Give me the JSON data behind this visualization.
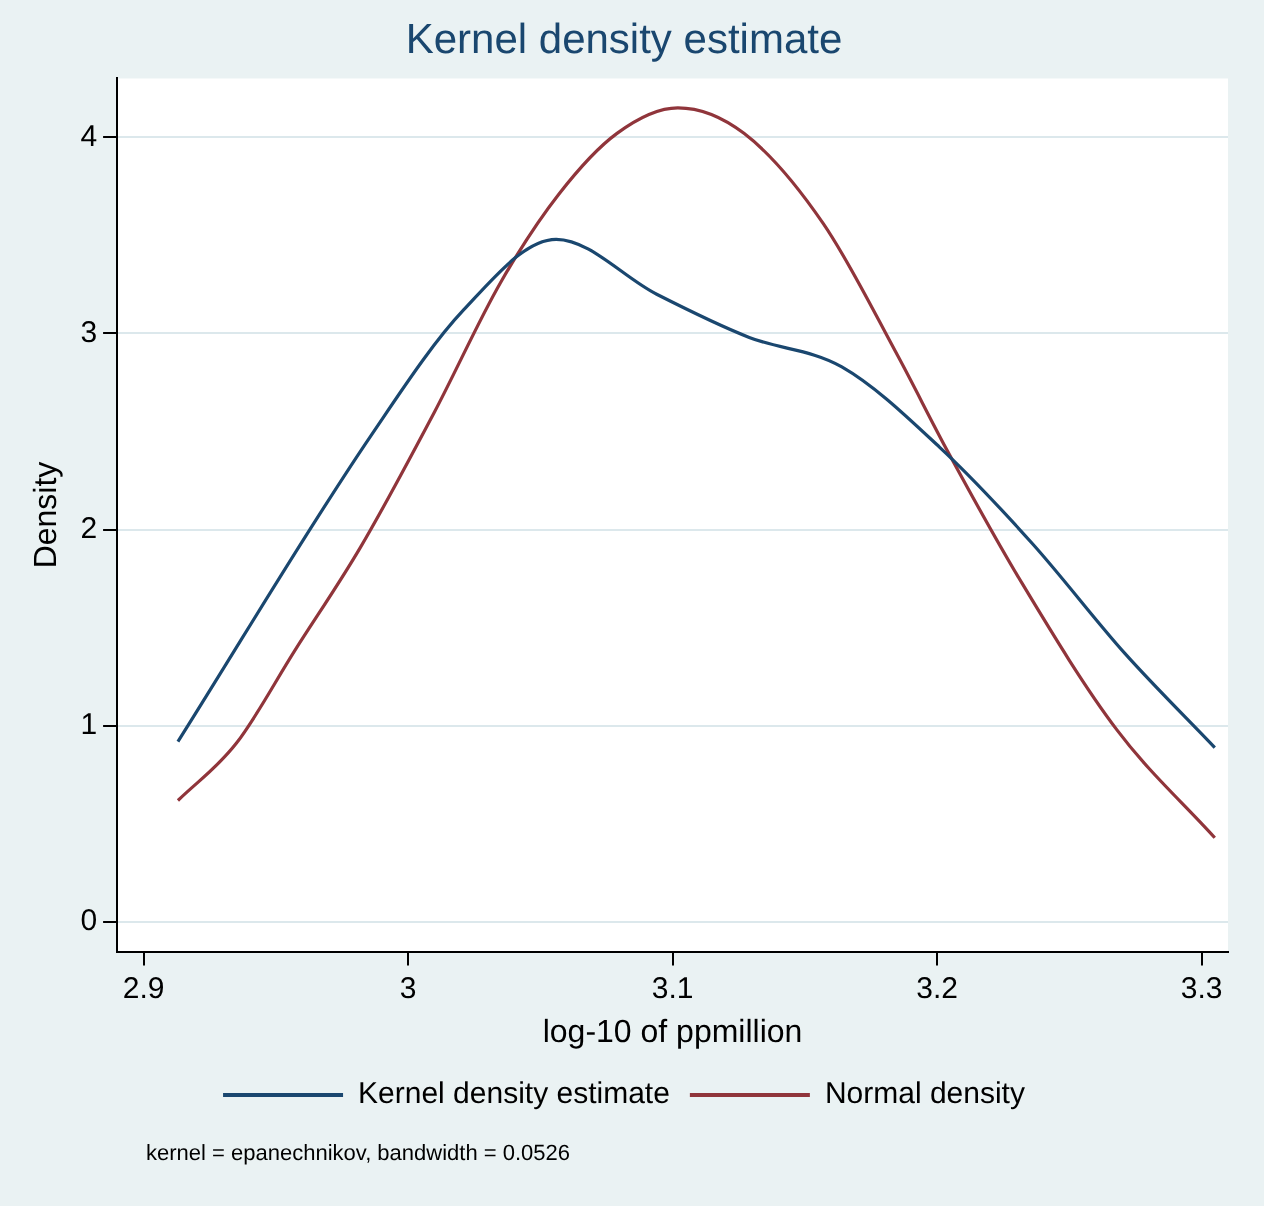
{
  "chart_data": {
    "type": "line",
    "title": "Kernel density estimate",
    "xlabel": "log-10 of ppmillion",
    "ylabel": "Density",
    "xlim": [
      2.89,
      3.31
    ],
    "xticks": [
      2.9,
      3,
      3.1,
      3.2,
      3.3
    ],
    "ylim": [
      -0.15,
      4.3
    ],
    "yticks": [
      0,
      1,
      2,
      3,
      4
    ],
    "grid": "y",
    "legend": "bottom",
    "marker": "none",
    "line_style": "solid",
    "annotations": [
      "kernel = epanechnikov, bandwidth = 0.0526"
    ],
    "series": [
      {
        "name": "Kernel density estimate",
        "color": "#1a476f",
        "x": [
          2.913,
          2.986,
          3.021,
          3.056,
          3.094,
          3.129,
          3.164,
          3.201,
          3.236,
          3.271,
          3.305
        ],
        "values": [
          0.92,
          2.48,
          3.12,
          3.48,
          3.2,
          2.98,
          2.83,
          2.42,
          1.93,
          1.37,
          0.89
        ]
      },
      {
        "name": "Normal density",
        "color": "#90353b",
        "x": [
          2.913,
          2.935,
          2.957,
          2.982,
          3.01,
          3.035,
          3.057,
          3.079,
          3.102,
          3.127,
          3.157,
          3.185,
          3.204,
          3.232,
          3.268,
          3.305
        ],
        "values": [
          0.62,
          0.91,
          1.38,
          1.91,
          2.6,
          3.26,
          3.71,
          4.02,
          4.15,
          4.02,
          3.56,
          2.89,
          2.4,
          1.73,
          0.98,
          0.43
        ]
      }
    ]
  }
}
